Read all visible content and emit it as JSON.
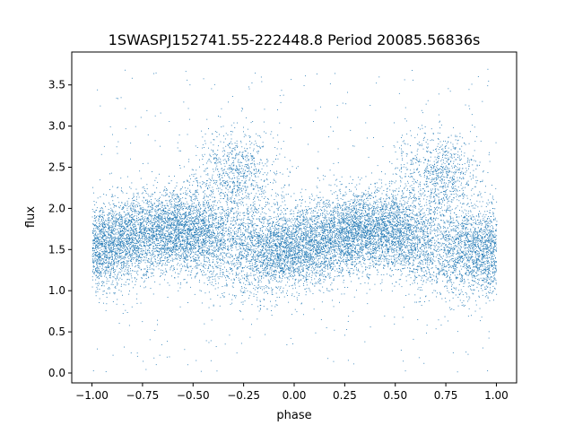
{
  "chart_data": {
    "type": "scatter",
    "title": "1SWASPJ152741.55-222448.8 Period 20085.56836s",
    "xlabel": "phase",
    "ylabel": "flux",
    "xlim": [
      -1.1,
      1.1
    ],
    "ylim": [
      -0.12,
      3.9
    ],
    "xticks": [
      -1.0,
      -0.75,
      -0.5,
      -0.25,
      0.0,
      0.25,
      0.5,
      0.75,
      1.0
    ],
    "xtick_labels": [
      "−1.00",
      "−0.75",
      "−0.50",
      "−0.25",
      "0.00",
      "0.25",
      "0.50",
      "0.75",
      "1.00"
    ],
    "yticks": [
      0.0,
      0.5,
      1.0,
      1.5,
      2.0,
      2.5,
      3.0,
      3.5
    ],
    "ytick_labels": [
      "0.0",
      "0.5",
      "1.0",
      "1.5",
      "2.0",
      "2.5",
      "3.0",
      "3.5"
    ],
    "grid": false,
    "marker_color": "#1f77b4",
    "series": [
      {
        "x_range": [
          -1.0,
          1.0
        ],
        "n_points": 16000,
        "baseline_flux": 1.62,
        "baseline_spread": 0.25,
        "hump_centers": [
          -0.28,
          0.72
        ],
        "hump_width": 0.1,
        "hump_peak_flux": 2.45,
        "outlier_range": [
          0.0,
          3.7
        ]
      }
    ]
  }
}
